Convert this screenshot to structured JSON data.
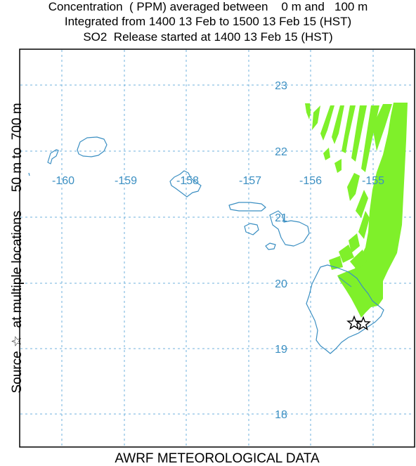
{
  "header": {
    "line1": "Concentration  ( PPM) averaged between    0 m and   100 m",
    "line2": "Integrated from 1400 13 Feb to 1500 13 Feb 15 (HST)",
    "line3": "SO2  Release started at 1400 13 Feb 15 (HST)"
  },
  "side_label": {
    "source_icon": "star-outline-icon",
    "text": "Source ☆  at multiple locations     50 m to  700 m"
  },
  "footer": "AWRF METEOROLOGICAL DATA",
  "colors": {
    "plume": "#7ff02a",
    "coast": "#3b8fc2",
    "grid": "#6fb2dc",
    "label": "#3b8fc2",
    "frame": "#000000"
  },
  "map": {
    "longitude_labels": [
      "-160",
      "-159",
      "-158",
      "-157",
      "-156",
      "-155"
    ],
    "latitude_labels": [
      "23",
      "22",
      "21",
      "20",
      "19",
      "18"
    ],
    "source_count": 2,
    "source_icon": "star-outline-icon"
  }
}
